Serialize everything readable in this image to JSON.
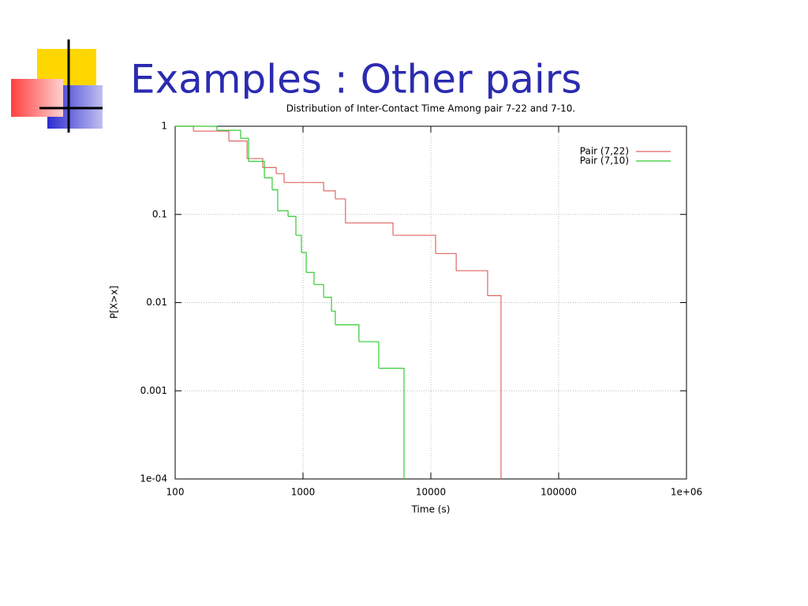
{
  "slide_title": "Examples : Other pairs",
  "chart_data": {
    "type": "line",
    "step": true,
    "title": "Distribution of Inter-Contact Time Among pair 7-22 and 7-10.",
    "x_label": "Time (s)",
    "y_label": "P[X>x]",
    "xlog": true,
    "ylog": true,
    "grid": true,
    "legend": "top-right",
    "xlim": [
      100,
      1000000
    ],
    "ylim": [
      0.0001,
      1
    ],
    "xticks": [
      100,
      1000,
      10000,
      100000,
      {
        "value": 1000000,
        "label": "1e+06"
      }
    ],
    "yticks": [
      {
        "value": 0.0001,
        "label": "1e-04"
      },
      0.001,
      0.01,
      0.1,
      1
    ],
    "series": [
      {
        "name": "Pair (7,22)",
        "color": "#e06666",
        "x": [
          100,
          139,
          263,
          365,
          484,
          617,
          711,
          1450,
          1790,
          2150,
          5060,
          10900,
          15800,
          27800,
          35400
        ],
        "values": [
          1,
          0.88,
          0.68,
          0.43,
          0.34,
          0.29,
          0.23,
          0.185,
          0.15,
          0.08,
          0.058,
          0.036,
          0.023,
          0.012,
          0.0001
        ]
      },
      {
        "name": "Pair (7,10)",
        "color": "#33cc33",
        "x": [
          100,
          212,
          325,
          375,
          499,
          574,
          634,
          764,
          880,
          972,
          1060,
          1220,
          1450,
          1670,
          1790,
          2740,
          3910,
          6170
        ],
        "values": [
          1,
          0.9,
          0.73,
          0.4,
          0.26,
          0.19,
          0.11,
          0.095,
          0.058,
          0.037,
          0.022,
          0.016,
          0.0115,
          0.008,
          0.0056,
          0.0036,
          0.0018,
          0.0001
        ]
      }
    ]
  }
}
